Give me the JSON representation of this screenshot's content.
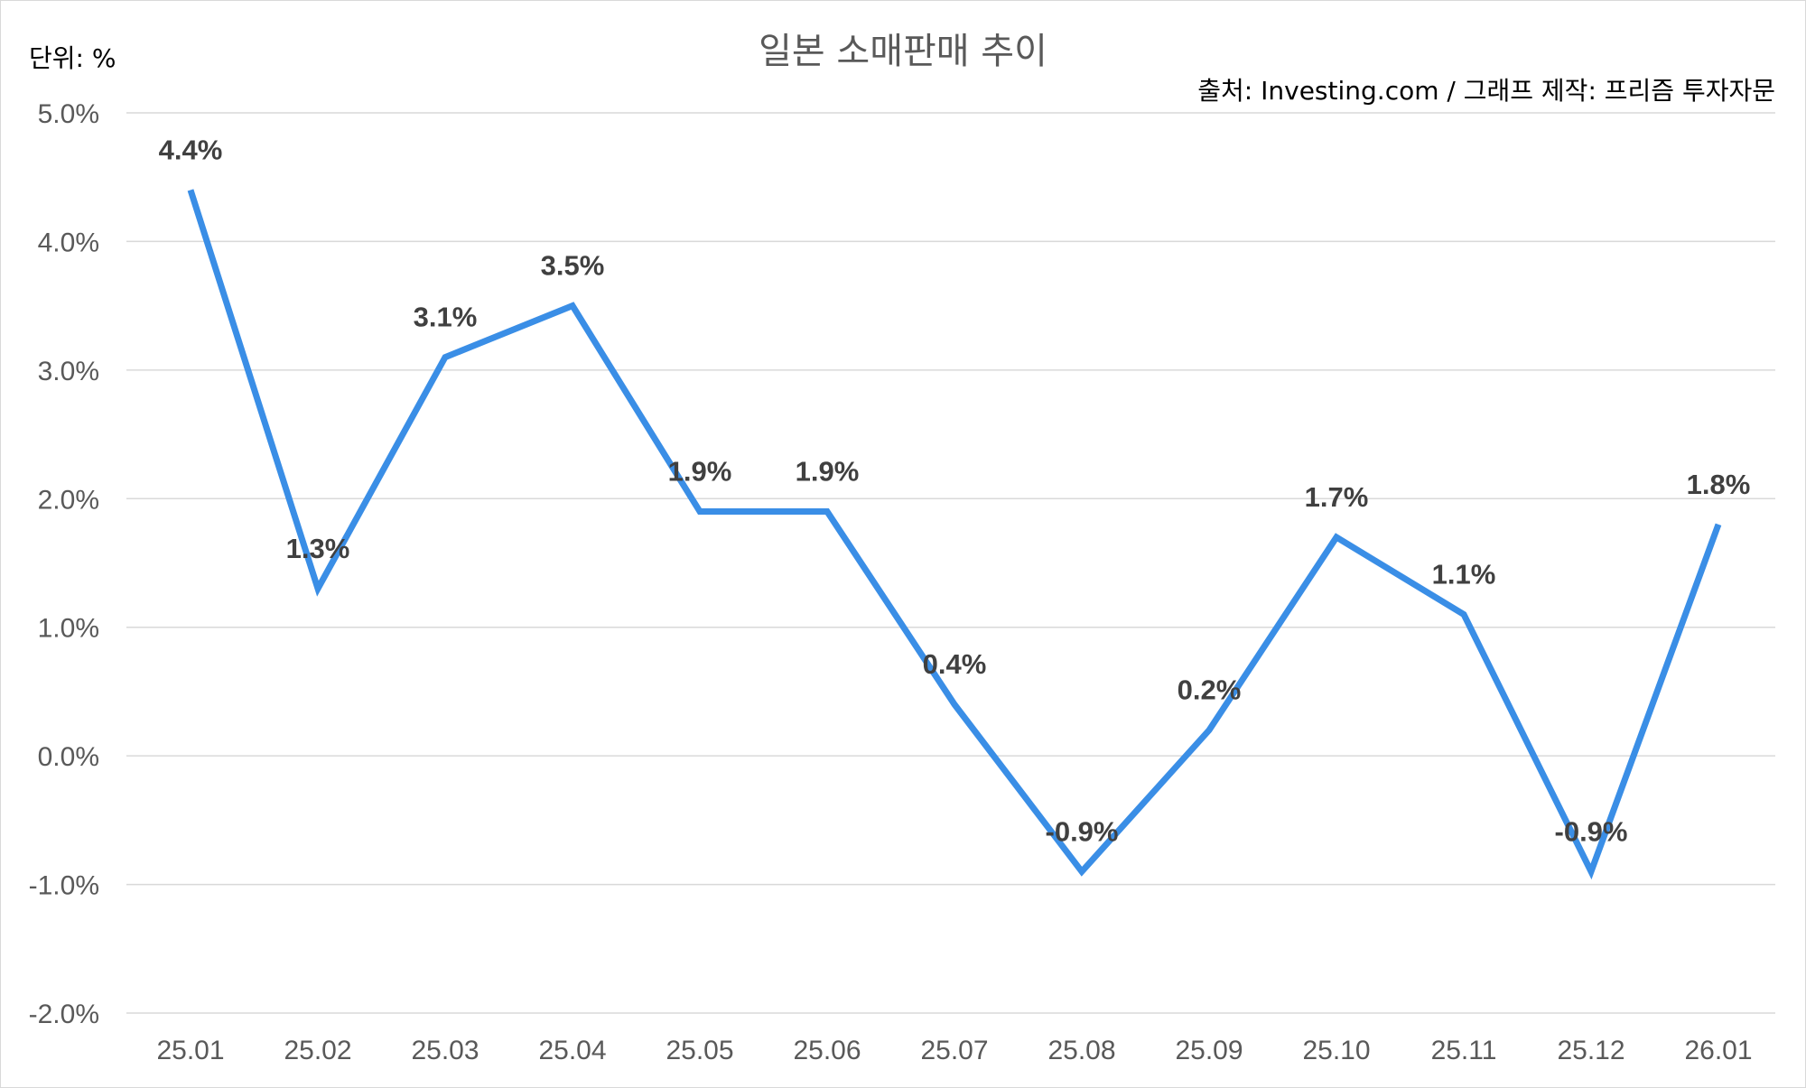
{
  "chart_data": {
    "type": "line",
    "title": "일본 소매판매 추이",
    "unit_label": "단위: %",
    "source": "출처: Investing.com / 그래프 제작: 프리즘 투자자문",
    "xlabel": "",
    "ylabel": "",
    "categories": [
      "25.01",
      "25.02",
      "25.03",
      "25.04",
      "25.05",
      "25.06",
      "25.07",
      "25.08",
      "25.09",
      "25.10",
      "25.11",
      "25.12",
      "26.01"
    ],
    "series": [
      {
        "values": [
          4.4,
          1.3,
          3.1,
          3.5,
          1.9,
          1.9,
          0.4,
          -0.9,
          0.2,
          1.7,
          1.1,
          -0.9,
          1.8
        ],
        "data_labels": [
          "4.4%",
          "1.3%",
          "3.1%",
          "3.5%",
          "1.9%",
          "1.9%",
          "0.4%",
          "-0.9%",
          "0.2%",
          "1.7%",
          "1.1%",
          "-0.9%",
          "1.8%"
        ],
        "color": "#3a8ee6"
      }
    ],
    "ylim": [
      -2.0,
      5.0
    ],
    "yticks": [
      5.0,
      4.0,
      3.0,
      2.0,
      1.0,
      0.0,
      -1.0,
      -2.0
    ],
    "ytick_labels": [
      "5.0%",
      "4.0%",
      "3.0%",
      "2.0%",
      "1.0%",
      "0.0%",
      "-1.0%",
      "-2.0%"
    ],
    "grid": true,
    "legend": "none"
  }
}
